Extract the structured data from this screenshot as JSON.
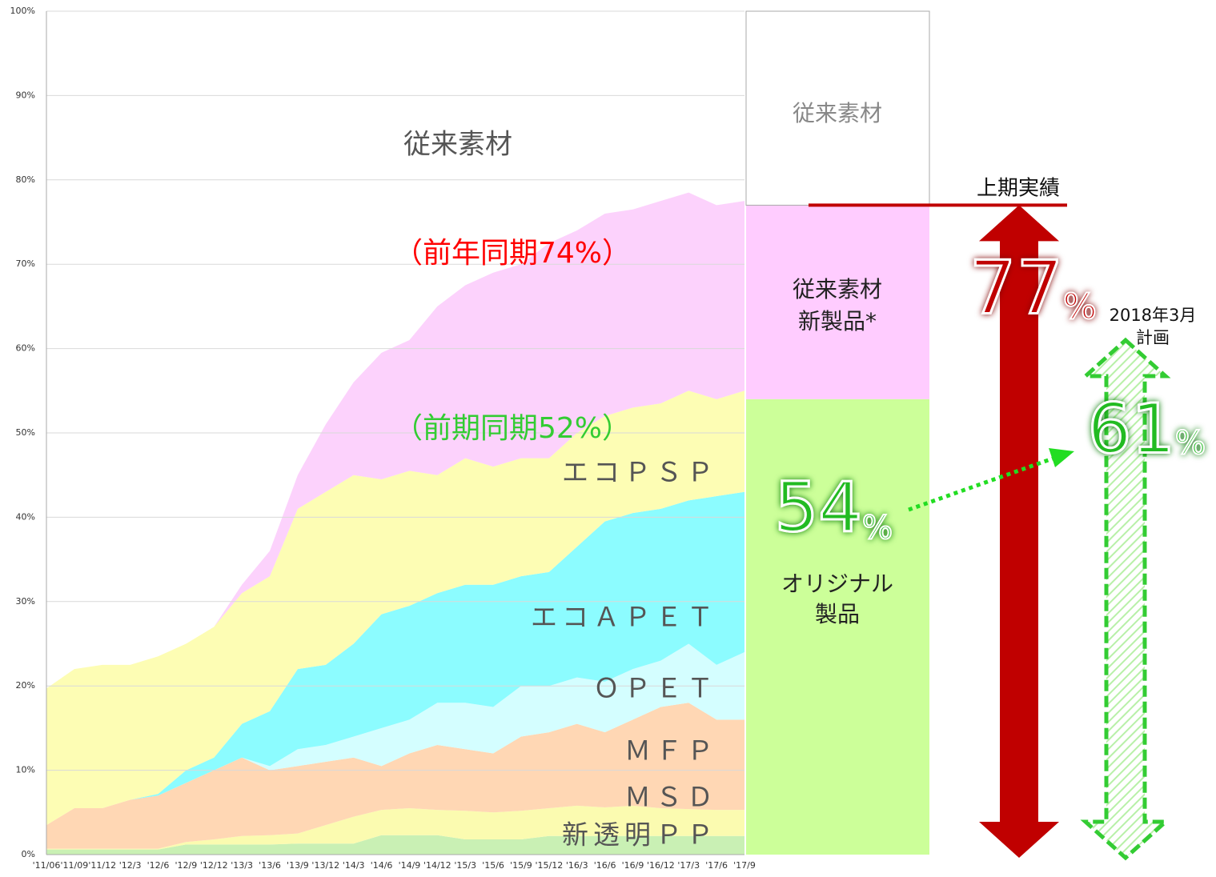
{
  "chart_data": {
    "type": "area",
    "stacked": true,
    "categories": [
      "'11/06",
      "'11/09",
      "'11/12",
      "'12/3",
      "'12/6",
      "'12/9",
      "'12/12",
      "'13/3",
      "'13/6",
      "'13/9",
      "'13/12",
      "'14/3",
      "'14/6",
      "'14/9",
      "'14/12",
      "'15/3",
      "'15/6",
      "'15/9",
      "'15/12",
      "'16/3",
      "'16/6",
      "'16/9",
      "'16/12",
      "'17/3",
      "'17/6",
      "'17/9"
    ],
    "series": [
      {
        "name": "新透明ＰＰ",
        "color": "#c9f0b4",
        "values": [
          0.6,
          0.6,
          0.6,
          0.6,
          0.6,
          1.2,
          1.2,
          1.2,
          1.2,
          1.3,
          1.3,
          1.3,
          2.3,
          2.3,
          2.3,
          1.8,
          1.8,
          1.8,
          2.2,
          2.2,
          2.2,
          2.2,
          2.2,
          2.2,
          2.2,
          2.2
        ]
      },
      {
        "name": "ＭＳＤ",
        "color": "#fbfbb0",
        "values": [
          0.1,
          0.1,
          0.1,
          0.1,
          0.1,
          0.3,
          0.6,
          1.0,
          1.1,
          1.2,
          2.2,
          3.2,
          3.0,
          3.2,
          3.0,
          3.4,
          3.2,
          3.4,
          3.3,
          3.6,
          3.4,
          3.6,
          3.3,
          3.2,
          3.1,
          3.1
        ]
      },
      {
        "name": "ＭＦＰ",
        "color": "#ffd7b4",
        "values": [
          2.8,
          4.8,
          4.8,
          5.8,
          6.3,
          7.0,
          8.2,
          9.3,
          7.7,
          8.0,
          7.5,
          7.0,
          5.2,
          6.5,
          7.7,
          7.3,
          7.0,
          8.8,
          9.0,
          9.7,
          8.9,
          10.2,
          12.0,
          12.6,
          10.7,
          10.7
        ]
      },
      {
        "name": "ＯＰＥＴ",
        "color": "#d4feff",
        "values": [
          0,
          0,
          0,
          0,
          0,
          0,
          0,
          0,
          0.5,
          2.0,
          2.0,
          2.5,
          4.5,
          4.0,
          5.0,
          5.5,
          5.5,
          6.0,
          5.5,
          5.5,
          6.0,
          6.0,
          5.5,
          7.0,
          6.5,
          8.0
        ]
      },
      {
        "name": "エコＡＰＥＴ",
        "color": "#8cfcff",
        "values": [
          0,
          0,
          0,
          0,
          0.2,
          1.5,
          1.5,
          4.0,
          6.5,
          9.5,
          9.5,
          11.0,
          13.5,
          13.5,
          13.0,
          14.0,
          14.5,
          13.0,
          13.5,
          15.5,
          19.0,
          18.5,
          18.0,
          17.0,
          20.0,
          19.0
        ]
      },
      {
        "name": "エコＰＳＰ",
        "color": "#fdfdb4",
        "values": [
          16.2,
          16.5,
          17.0,
          16.0,
          16.3,
          15.0,
          15.5,
          15.5,
          16.0,
          19.0,
          20.5,
          20.0,
          16.0,
          16.0,
          14.0,
          15.0,
          14.0,
          14.0,
          13.5,
          13.5,
          12.5,
          12.5,
          12.5,
          13.0,
          11.5,
          12.0
        ]
      },
      {
        "color": "#fcd2fc",
        "values": [
          0,
          0,
          0,
          0,
          0,
          0,
          0,
          1.0,
          3.0,
          4.0,
          8.0,
          11.0,
          15.0,
          15.5,
          20.0,
          20.5,
          23.0,
          23.0,
          25.5,
          24.0,
          24.0,
          23.5,
          24.0,
          23.5,
          23.0,
          22.5
        ]
      }
    ],
    "ylim": [
      0,
      100
    ],
    "yticks": [
      {
        "value": 0,
        "label": "0%"
      },
      {
        "value": 10,
        "label": "10%"
      },
      {
        "value": 20,
        "label": "20%"
      },
      {
        "value": 30,
        "label": "30%"
      },
      {
        "value": 40,
        "label": "40%"
      },
      {
        "value": 50,
        "label": "50%"
      },
      {
        "value": 60,
        "label": "60%"
      },
      {
        "value": 70,
        "label": "70%"
      },
      {
        "value": 80,
        "label": "80%"
      },
      {
        "value": 90,
        "label": "90%"
      },
      {
        "value": 100,
        "label": "100%"
      }
    ],
    "grid": true,
    "top_label": "従来素材",
    "notes": [
      {
        "text": "（前年同期74%）",
        "color": "#ff0000"
      },
      {
        "text": "（前期同期52%）",
        "color": "#33cc33"
      }
    ]
  },
  "side": {
    "segments": [
      {
        "lines": [
          "オリジナル",
          "製品"
        ],
        "value": 54,
        "color": "#ccff99"
      },
      {
        "lines": [
          "従来素材",
          "新製品*"
        ],
        "value": 23,
        "color": "#ffccff"
      },
      {
        "lines": [
          "従来素材"
        ],
        "value": 23,
        "color": "#ffffff"
      }
    ],
    "unit": "%",
    "result": {
      "label": "上期実績",
      "value": 77,
      "color": "#c00000"
    },
    "plan": {
      "lines": [
        "2018年3月",
        "計画"
      ],
      "value": 61,
      "color": "#33cc33"
    }
  }
}
